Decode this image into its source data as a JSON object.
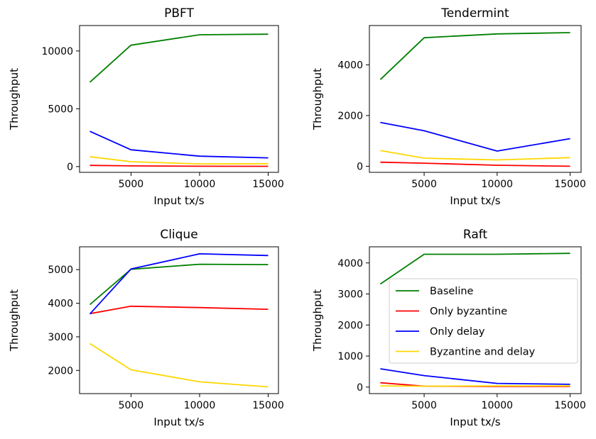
{
  "chart_data": [
    {
      "type": "line",
      "title": "PBFT",
      "xlabel": "Input tx/s",
      "ylabel": "Throughput",
      "xlim": [
        1250,
        15750
      ],
      "ylim": [
        -500,
        12200
      ],
      "xticks": [
        5000,
        10000,
        15000
      ],
      "yticks": [
        0,
        5000,
        10000
      ],
      "x": [
        2000,
        5000,
        10000,
        15000
      ],
      "series": [
        {
          "name": "Baseline",
          "color": "#008000",
          "values": [
            7300,
            10500,
            11400,
            11450
          ]
        },
        {
          "name": "Only byzantine",
          "color": "#ff0000",
          "values": [
            100,
            60,
            30,
            20
          ]
        },
        {
          "name": "Only delay",
          "color": "#0000ff",
          "values": [
            3050,
            1450,
            900,
            750
          ]
        },
        {
          "name": "Byzantine and delay",
          "color": "#ffd700",
          "values": [
            850,
            420,
            230,
            250
          ]
        }
      ],
      "legend": false
    },
    {
      "type": "line",
      "title": "Tendermint",
      "xlabel": "Input tx/s",
      "ylabel": "Throughput",
      "xlim": [
        1250,
        15750
      ],
      "ylim": [
        -240,
        5550
      ],
      "xticks": [
        5000,
        10000,
        15000
      ],
      "yticks": [
        0,
        2000,
        4000
      ],
      "x": [
        2000,
        5000,
        10000,
        15000
      ],
      "series": [
        {
          "name": "Baseline",
          "color": "#008000",
          "values": [
            3420,
            5070,
            5220,
            5270
          ]
        },
        {
          "name": "Only byzantine",
          "color": "#ff0000",
          "values": [
            160,
            120,
            40,
            0
          ]
        },
        {
          "name": "Only delay",
          "color": "#0000ff",
          "values": [
            1730,
            1400,
            600,
            1090
          ]
        },
        {
          "name": "Byzantine and delay",
          "color": "#ffd700",
          "values": [
            620,
            320,
            250,
            340
          ]
        }
      ],
      "legend": false
    },
    {
      "type": "line",
      "title": "Clique",
      "xlabel": "Input tx/s",
      "ylabel": "Throughput",
      "xlim": [
        1250,
        15750
      ],
      "ylim": [
        1310,
        5680
      ],
      "xticks": [
        5000,
        10000,
        15000
      ],
      "yticks": [
        2000,
        3000,
        4000,
        5000
      ],
      "x": [
        2000,
        5000,
        10000,
        15000
      ],
      "series": [
        {
          "name": "Baseline",
          "color": "#008000",
          "values": [
            3960,
            5010,
            5160,
            5150
          ]
        },
        {
          "name": "Only byzantine",
          "color": "#ff0000",
          "values": [
            3690,
            3910,
            3870,
            3820
          ]
        },
        {
          "name": "Only delay",
          "color": "#0000ff",
          "values": [
            3680,
            5020,
            5470,
            5420
          ]
        },
        {
          "name": "Byzantine and delay",
          "color": "#ffd700",
          "values": [
            2800,
            2020,
            1660,
            1510
          ]
        }
      ],
      "legend": false
    },
    {
      "type": "line",
      "title": "Raft",
      "xlabel": "Input tx/s",
      "ylabel": "Throughput",
      "xlim": [
        1250,
        15750
      ],
      "ylim": [
        -210,
        4520
      ],
      "xticks": [
        5000,
        10000,
        15000
      ],
      "yticks": [
        0,
        1000,
        2000,
        3000,
        4000
      ],
      "x": [
        2000,
        5000,
        10000,
        15000
      ],
      "series": [
        {
          "name": "Baseline",
          "color": "#008000",
          "values": [
            3320,
            4280,
            4280,
            4310
          ]
        },
        {
          "name": "Only byzantine",
          "color": "#ff0000",
          "values": [
            140,
            30,
            20,
            20
          ]
        },
        {
          "name": "Only delay",
          "color": "#0000ff",
          "values": [
            590,
            370,
            120,
            90
          ]
        },
        {
          "name": "Byzantine and delay",
          "color": "#ffd700",
          "values": [
            40,
            30,
            40,
            40
          ]
        }
      ],
      "legend": true,
      "legend_placement": "center-right"
    }
  ]
}
